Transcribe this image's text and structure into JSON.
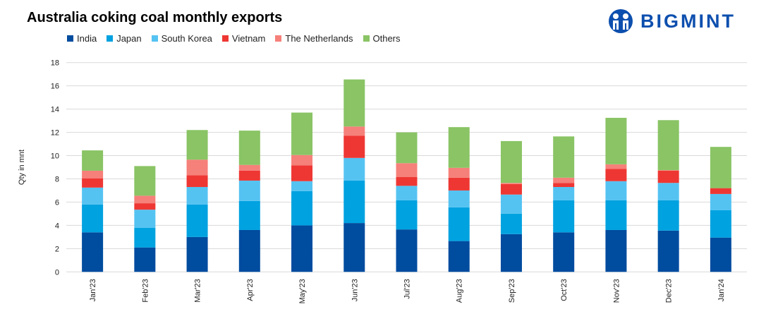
{
  "brand": {
    "name": "BIGMINT"
  },
  "chart_data": {
    "type": "bar",
    "stacked": true,
    "title": "Australia coking coal monthly exports",
    "xlabel": "",
    "ylabel": "Qty in mnt",
    "ylim": [
      0,
      18
    ],
    "yticks": [
      0,
      2,
      4,
      6,
      8,
      10,
      12,
      14,
      16,
      18
    ],
    "grid": true,
    "legend_position": "top-left",
    "categories": [
      "Jan'23",
      "Feb'23",
      "Mar'23",
      "Apr'23",
      "May'23",
      "Jun'23",
      "Jul'23",
      "Aug'23",
      "Sep'23",
      "Oct'23",
      "Nov'23",
      "Dec'23",
      "Jan'24"
    ],
    "series": [
      {
        "name": "India",
        "color": "#004c9f",
        "values": [
          3.4,
          2.1,
          3.0,
          3.6,
          4.0,
          4.2,
          3.65,
          2.65,
          3.25,
          3.4,
          3.6,
          3.55,
          2.95
        ]
      },
      {
        "name": "Japan",
        "color": "#00a2e0",
        "values": [
          2.4,
          1.7,
          2.8,
          2.5,
          2.95,
          3.65,
          2.5,
          2.9,
          1.75,
          2.75,
          2.55,
          2.6,
          2.35
        ]
      },
      {
        "name": "South Korea",
        "color": "#55c3f2",
        "values": [
          1.45,
          1.55,
          1.5,
          1.75,
          0.85,
          1.95,
          1.25,
          1.45,
          1.65,
          1.15,
          1.65,
          1.5,
          1.4
        ]
      },
      {
        "name": "Vietnam",
        "color": "#ee3733",
        "values": [
          0.8,
          0.55,
          1.0,
          0.85,
          1.35,
          1.9,
          0.75,
          1.1,
          0.9,
          0.35,
          1.05,
          1.05,
          0.5
        ]
      },
      {
        "name": "The Netherlands",
        "color": "#f6807a",
        "values": [
          0.65,
          0.65,
          1.35,
          0.5,
          0.9,
          0.8,
          1.2,
          0.85,
          0.1,
          0.45,
          0.4,
          0.05,
          0
        ]
      },
      {
        "name": "Others",
        "color": "#8ac465",
        "values": [
          1.75,
          2.55,
          2.55,
          2.95,
          3.65,
          4.05,
          2.65,
          3.5,
          3.6,
          3.55,
          4.0,
          4.3,
          3.55
        ]
      }
    ]
  }
}
